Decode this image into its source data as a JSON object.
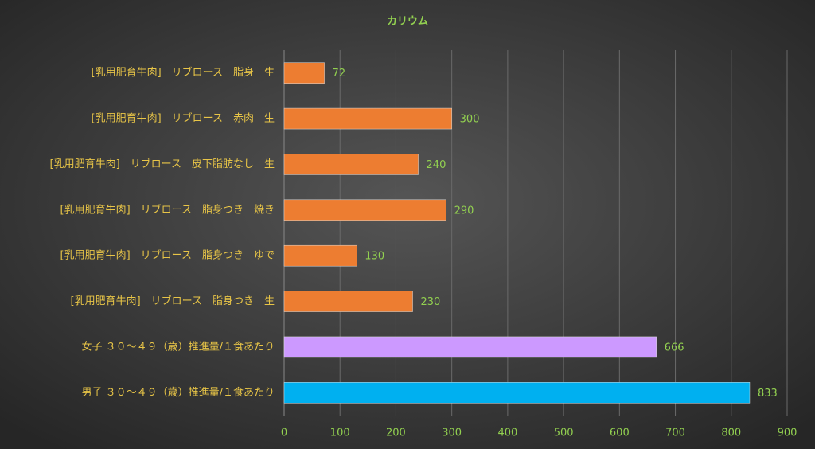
{
  "chart_data": {
    "type": "bar",
    "orientation": "horizontal",
    "title": "カリウム",
    "categories": [
      "[乳用肥育牛肉]　リブロース　脂身　生",
      "[乳用肥育牛肉]　リブロース　赤肉　生",
      "[乳用肥育牛肉]　リブロース　皮下脂肪なし　生",
      "[乳用肥育牛肉]　リブロース　脂身つき　焼き",
      "[乳用肥育牛肉]　リブロース　脂身つき　ゆで",
      "[乳用肥育牛肉]　リブロース　脂身つき　生",
      "女子 ３０～４９（歳）推進量/１食あたり",
      "男子 ３０～４９（歳）推進量/１食あたり"
    ],
    "values": [
      72,
      300,
      240,
      290,
      130,
      230,
      666,
      833
    ],
    "colors": [
      "#ed7d31",
      "#ed7d31",
      "#ed7d31",
      "#ed7d31",
      "#ed7d31",
      "#ed7d31",
      "#cc99ff",
      "#00b0f0"
    ],
    "xlim": [
      0,
      900
    ],
    "xticks": [
      0,
      100,
      200,
      300,
      400,
      500,
      600,
      700,
      800,
      900
    ],
    "grid": true
  }
}
